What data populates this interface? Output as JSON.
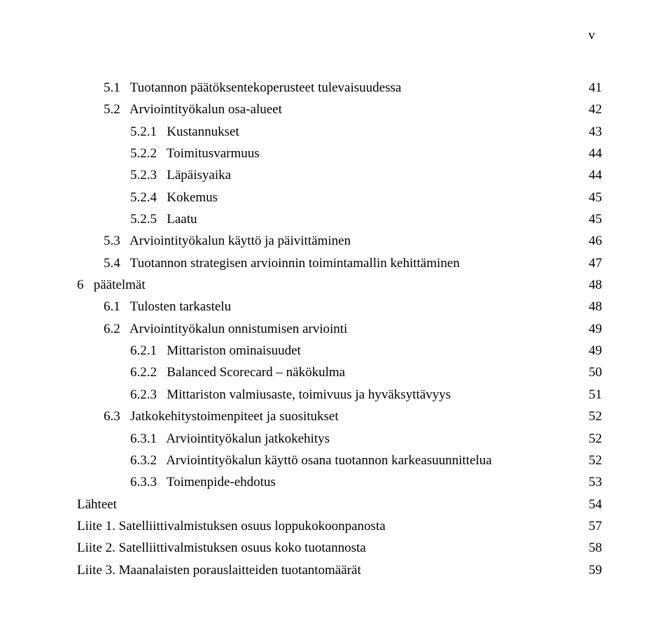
{
  "page_roman": "v",
  "font_family": "Times New Roman",
  "base_fontsize_pt": 14,
  "text_color": "#000000",
  "background_color": "#ffffff",
  "leader_char": ".",
  "toc": [
    {
      "indent": 2,
      "num": "5.1",
      "title": "Tuotannon päätöksentekoperusteet tulevaisuudessa",
      "page": "41"
    },
    {
      "indent": 2,
      "num": "5.2",
      "title": "Arviointityökalun osa-alueet",
      "page": "42"
    },
    {
      "indent": 3,
      "num": "5.2.1",
      "title": "Kustannukset",
      "page": "43"
    },
    {
      "indent": 3,
      "num": "5.2.2",
      "title": "Toimitusvarmuus",
      "page": "44"
    },
    {
      "indent": 3,
      "num": "5.2.3",
      "title": "Läpäisyaika",
      "page": "44"
    },
    {
      "indent": 3,
      "num": "5.2.4",
      "title": "Kokemus",
      "page": "45"
    },
    {
      "indent": 3,
      "num": "5.2.5",
      "title": "Laatu",
      "page": "45"
    },
    {
      "indent": 2,
      "num": "5.3",
      "title": "Arviointityökalun käyttö ja päivittäminen",
      "page": "46"
    },
    {
      "indent": 2,
      "num": "5.4",
      "title": "Tuotannon strategisen arvioinnin toimintamallin kehittäminen",
      "page": "47"
    },
    {
      "indent": 0,
      "num": "6",
      "title": "päätelmät",
      "page": "48"
    },
    {
      "indent": 2,
      "num": "6.1",
      "title": "Tulosten tarkastelu",
      "page": "48"
    },
    {
      "indent": 2,
      "num": "6.2",
      "title": "Arviointityökalun onnistumisen arviointi",
      "page": "49"
    },
    {
      "indent": 3,
      "num": "6.2.1",
      "title": "Mittariston ominaisuudet",
      "page": "49"
    },
    {
      "indent": 3,
      "num": "6.2.2",
      "title": "Balanced Scorecard – näkökulma",
      "page": "50"
    },
    {
      "indent": 3,
      "num": "6.2.3",
      "title": "Mittariston valmiusaste, toimivuus ja hyväksyttävyys",
      "page": "51"
    },
    {
      "indent": 2,
      "num": "6.3",
      "title": "Jatkokehitystoimenpiteet ja suositukset",
      "page": "52"
    },
    {
      "indent": 3,
      "num": "6.3.1",
      "title": "Arviointityökalun jatkokehitys",
      "page": "52"
    },
    {
      "indent": 3,
      "num": "6.3.2",
      "title": "Arviointityökalun käyttö osana tuotannon karkeasuunnittelua",
      "page": "52"
    },
    {
      "indent": 3,
      "num": "6.3.3",
      "title": "Toimenpide-ehdotus",
      "page": "53"
    },
    {
      "indent": 0,
      "num": "",
      "title": "Lähteet",
      "page": "54"
    },
    {
      "indent": 0,
      "num": "",
      "title": "Liite 1. Satelliittivalmistuksen osuus loppukokoonpanosta",
      "page": "57"
    },
    {
      "indent": 0,
      "num": "",
      "title": "Liite 2. Satelliittivalmistuksen osuus koko tuotannosta",
      "page": "58"
    },
    {
      "indent": 0,
      "num": "",
      "title": "Liite 3. Maanalaisten porauslaitteiden tuotantomäärät",
      "page": "59"
    }
  ]
}
